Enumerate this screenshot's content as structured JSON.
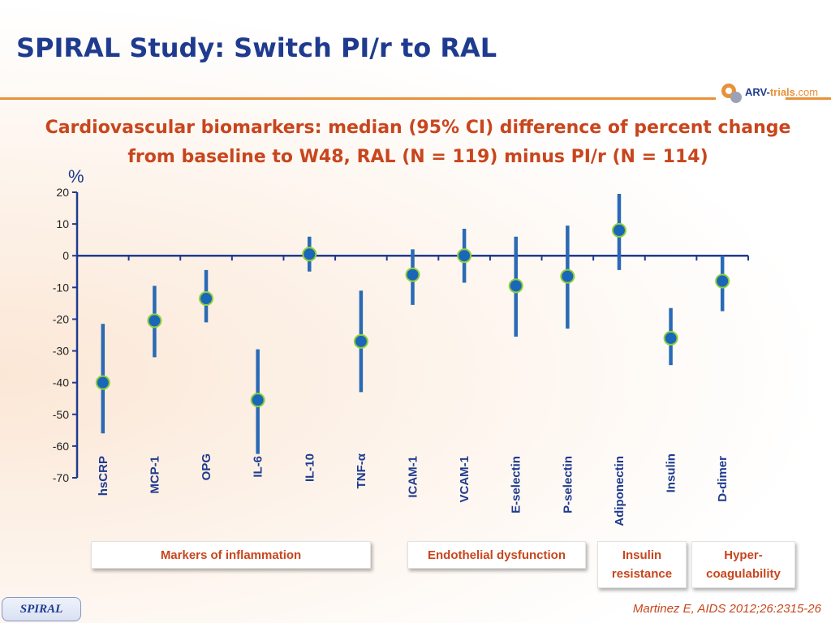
{
  "title": "SPIRAL Study: Switch PI/r to RAL",
  "subtitle_line1": "Cardiovascular biomarkers: median (95% CI) difference of percent change",
  "subtitle_line2": "from baseline to W48, RAL (N = 119) minus PI/r (N = 114)",
  "logo": {
    "part1": "ARV-",
    "part2": "trials",
    "part3": ".com"
  },
  "chart_data": {
    "type": "scatter",
    "ylabel": "%",
    "ylim": [
      -70,
      20
    ],
    "yticks": [
      20,
      10,
      0,
      -10,
      -20,
      -30,
      -40,
      -50,
      -60,
      -70
    ],
    "grid": false,
    "categories": [
      "hsCRP",
      "MCP-1",
      "OPG",
      "IL-6",
      "IL-10",
      "TNF-α",
      "ICAM-1",
      "VCAM-1",
      "E-selectin",
      "P-selectin",
      "Adiponectin",
      "Insulin",
      "D-dimer"
    ],
    "median": [
      -40,
      -20.5,
      -13.5,
      -45.5,
      0.5,
      -27,
      -6,
      0,
      -9.5,
      -6.5,
      8,
      -26,
      -8
    ],
    "ci_low": [
      -56,
      -32,
      -21,
      -62.5,
      -5,
      -43,
      -15.5,
      -8.5,
      -25.5,
      -23,
      -4.5,
      -34.5,
      -17.5
    ],
    "ci_high": [
      -21.5,
      -9.5,
      -4.5,
      -29.5,
      6,
      -11,
      2,
      8.5,
      6,
      9.5,
      19.5,
      -16.5,
      0
    ],
    "colors": {
      "line": "#2a6ab5",
      "marker": "#1a66b8",
      "marker_edge": "#8fcf3a",
      "axis": "#1f3b8f"
    }
  },
  "groups": [
    {
      "label": "Markers of inflammation"
    },
    {
      "label": "Endothelial dysfunction"
    },
    {
      "label_line1": "Insulin",
      "label_line2": "resistance"
    },
    {
      "label_line1": "Hyper-",
      "label_line2": "coagulability"
    }
  ],
  "footer": {
    "study_tag": "SPIRAL",
    "citation": "Martinez E, AIDS 2012;26:2315-26"
  }
}
